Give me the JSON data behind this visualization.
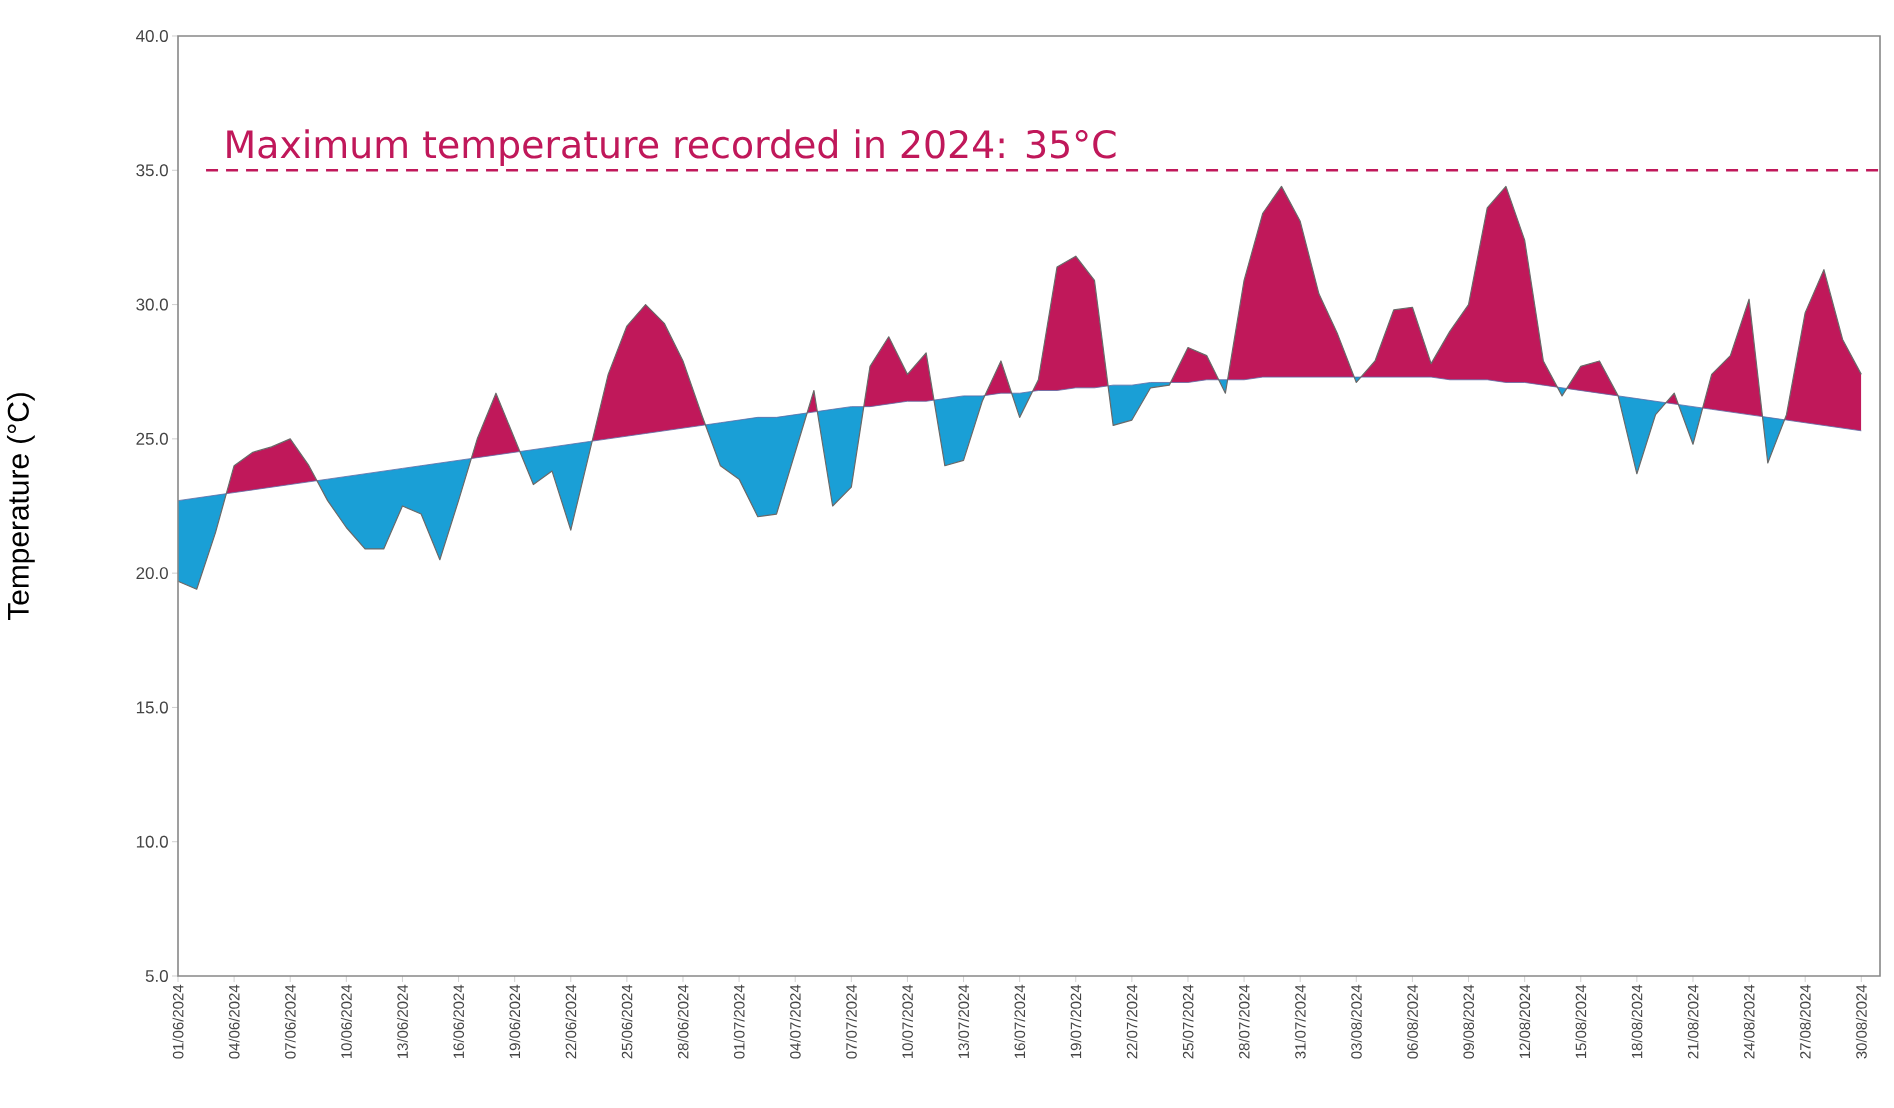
{
  "chart_data": {
    "type": "area",
    "ylabel": "Temperature (°C)",
    "x": [
      "2024-06-01",
      "2024-06-02",
      "2024-06-03",
      "2024-06-04",
      "2024-06-05",
      "2024-06-06",
      "2024-06-07",
      "2024-06-08",
      "2024-06-09",
      "2024-06-10",
      "2024-06-11",
      "2024-06-12",
      "2024-06-13",
      "2024-06-14",
      "2024-06-15",
      "2024-06-16",
      "2024-06-17",
      "2024-06-18",
      "2024-06-19",
      "2024-06-20",
      "2024-06-21",
      "2024-06-22",
      "2024-06-23",
      "2024-06-24",
      "2024-06-25",
      "2024-06-26",
      "2024-06-27",
      "2024-06-28",
      "2024-06-29",
      "2024-06-30",
      "2024-07-01",
      "2024-07-02",
      "2024-07-03",
      "2024-07-04",
      "2024-07-05",
      "2024-07-06",
      "2024-07-07",
      "2024-07-08",
      "2024-07-09",
      "2024-07-10",
      "2024-07-11",
      "2024-07-12",
      "2024-07-13",
      "2024-07-14",
      "2024-07-15",
      "2024-07-16",
      "2024-07-17",
      "2024-07-18",
      "2024-07-19",
      "2024-07-20",
      "2024-07-21",
      "2024-07-22",
      "2024-07-23",
      "2024-07-24",
      "2024-07-25",
      "2024-07-26",
      "2024-07-27",
      "2024-07-28",
      "2024-07-29",
      "2024-07-30",
      "2024-07-31",
      "2024-08-01",
      "2024-08-02",
      "2024-08-03",
      "2024-08-04",
      "2024-08-05",
      "2024-08-06",
      "2024-08-07",
      "2024-08-08",
      "2024-08-09",
      "2024-08-10",
      "2024-08-11",
      "2024-08-12",
      "2024-08-13",
      "2024-08-14",
      "2024-08-15",
      "2024-08-16",
      "2024-08-17",
      "2024-08-18",
      "2024-08-19",
      "2024-08-20",
      "2024-08-21",
      "2024-08-22",
      "2024-08-23",
      "2024-08-24",
      "2024-08-25",
      "2024-08-26",
      "2024-08-27",
      "2024-08-28",
      "2024-08-29",
      "2024-08-30"
    ],
    "series": [
      {
        "color": "#c0185a",
        "values": [
          19.7,
          19.4,
          21.5,
          24.0,
          24.5,
          24.7,
          25.0,
          24.0,
          22.7,
          21.7,
          20.9,
          20.9,
          22.5,
          22.2,
          20.5,
          22.7,
          25.0,
          26.7,
          25.0,
          23.3,
          23.8,
          21.6,
          24.5,
          27.4,
          29.2,
          30.0,
          29.3,
          27.9,
          25.9,
          24.0,
          23.5,
          22.1,
          22.2,
          24.5,
          26.8,
          22.5,
          23.2,
          27.7,
          28.8,
          27.4,
          28.2,
          24.0,
          24.2,
          26.4,
          27.9,
          25.8,
          27.2,
          31.4,
          31.8,
          30.9,
          25.5,
          25.7,
          26.9,
          27.0,
          28.4,
          28.1,
          26.7,
          30.9,
          33.4,
          34.4,
          33.1,
          30.4,
          28.9,
          27.1,
          27.9,
          29.8,
          29.9,
          27.8,
          29.0,
          30.0,
          33.6,
          34.4,
          32.4,
          27.9,
          26.6,
          27.7,
          27.9,
          26.6,
          23.7,
          25.9,
          26.7,
          24.8,
          27.4,
          28.1,
          30.2,
          24.1,
          25.9,
          29.7,
          31.3,
          28.7,
          27.4
        ]
      },
      {
        "color": "#1a9fd6",
        "values": [
          22.7,
          22.8,
          22.9,
          23.0,
          23.1,
          23.2,
          23.3,
          23.4,
          23.5,
          23.6,
          23.7,
          23.8,
          23.9,
          24.0,
          24.1,
          24.2,
          24.3,
          24.4,
          24.5,
          24.6,
          24.7,
          24.8,
          24.9,
          25.0,
          25.1,
          25.2,
          25.3,
          25.4,
          25.5,
          25.6,
          25.7,
          25.8,
          25.8,
          25.9,
          26.0,
          26.1,
          26.2,
          26.2,
          26.3,
          26.4,
          26.4,
          26.5,
          26.6,
          26.6,
          26.7,
          26.7,
          26.8,
          26.8,
          26.9,
          26.9,
          27.0,
          27.0,
          27.1,
          27.1,
          27.1,
          27.2,
          27.2,
          27.2,
          27.3,
          27.3,
          27.3,
          27.3,
          27.3,
          27.3,
          27.3,
          27.3,
          27.3,
          27.3,
          27.2,
          27.2,
          27.2,
          27.1,
          27.1,
          27.0,
          26.9,
          26.8,
          26.7,
          26.6,
          26.5,
          26.4,
          26.3,
          26.2,
          26.1,
          26.0,
          25.9,
          25.8,
          25.7,
          25.6,
          25.5,
          25.4,
          25.3
        ]
      }
    ],
    "xlim": [
      "2024-06-01",
      "2024-08-31"
    ],
    "xticks": [
      {
        "value": "2024-06-01",
        "label": "01/06/2024"
      },
      {
        "value": "2024-06-04",
        "label": "04/06/2024"
      },
      {
        "value": "2024-06-07",
        "label": "07/06/2024"
      },
      {
        "value": "2024-06-10",
        "label": "10/06/2024"
      },
      {
        "value": "2024-06-13",
        "label": "13/06/2024"
      },
      {
        "value": "2024-06-16",
        "label": "16/06/2024"
      },
      {
        "value": "2024-06-19",
        "label": "19/06/2024"
      },
      {
        "value": "2024-06-22",
        "label": "22/06/2024"
      },
      {
        "value": "2024-06-25",
        "label": "25/06/2024"
      },
      {
        "value": "2024-06-28",
        "label": "28/06/2024"
      },
      {
        "value": "2024-07-01",
        "label": "01/07/2024"
      },
      {
        "value": "2024-07-04",
        "label": "04/07/2024"
      },
      {
        "value": "2024-07-07",
        "label": "07/07/2024"
      },
      {
        "value": "2024-07-10",
        "label": "10/07/2024"
      },
      {
        "value": "2024-07-13",
        "label": "13/07/2024"
      },
      {
        "value": "2024-07-16",
        "label": "16/07/2024"
      },
      {
        "value": "2024-07-19",
        "label": "19/07/2024"
      },
      {
        "value": "2024-07-22",
        "label": "22/07/2024"
      },
      {
        "value": "2024-07-25",
        "label": "25/07/2024"
      },
      {
        "value": "2024-07-28",
        "label": "28/07/2024"
      },
      {
        "value": "2024-07-31",
        "label": "31/07/2024"
      },
      {
        "value": "2024-08-03",
        "label": "03/08/2024"
      },
      {
        "value": "2024-08-06",
        "label": "06/08/2024"
      },
      {
        "value": "2024-08-09",
        "label": "09/08/2024"
      },
      {
        "value": "2024-08-12",
        "label": "12/08/2024"
      },
      {
        "value": "2024-08-15",
        "label": "15/08/2024"
      },
      {
        "value": "2024-08-18",
        "label": "18/08/2024"
      },
      {
        "value": "2024-08-21",
        "label": "21/08/2024"
      },
      {
        "value": "2024-08-24",
        "label": "24/08/2024"
      },
      {
        "value": "2024-08-27",
        "label": "27/08/2024"
      },
      {
        "value": "2024-08-30",
        "label": "30/08/2024"
      }
    ],
    "ylim": [
      5,
      40
    ],
    "yticks": [
      {
        "value": 5,
        "label": "5.0"
      },
      {
        "value": 10,
        "label": "10.0"
      },
      {
        "value": 15,
        "label": "15.0"
      },
      {
        "value": 20,
        "label": "20.0"
      },
      {
        "value": 25,
        "label": "25.0"
      },
      {
        "value": 30,
        "label": "30.0"
      },
      {
        "value": 35,
        "label": "35.0"
      },
      {
        "value": 40,
        "label": "40.0"
      }
    ],
    "ref_lines": [
      {
        "axis": "y",
        "value": 35,
        "label": "Maximum temperature recorded in 2024: 35°C",
        "color": "#c0185a",
        "line_style": "dashed"
      }
    ],
    "marker": "none"
  }
}
